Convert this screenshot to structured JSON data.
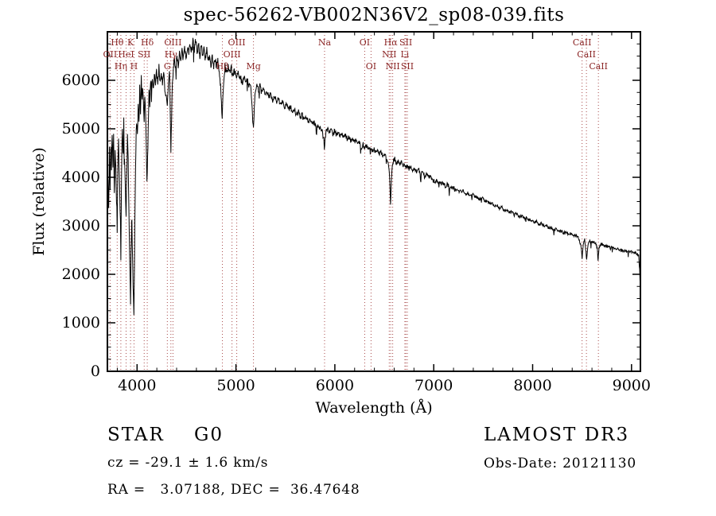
{
  "title": "spec-56262-VB002N36V2_sp08-039.fits",
  "footer": {
    "class_line": "STAR    G0",
    "cz_line": "cz = -29.1 ± 1.6 km/s",
    "radec_line": "RA =   3.07188, DEC =  36.47648",
    "survey": "LAMOST DR3",
    "obs_date": "Obs-Date: 20121130"
  },
  "chart_data": {
    "type": "line",
    "title": "spec-56262-VB002N36V2_sp08-039.fits",
    "xlabel": "Wavelength (Å)",
    "ylabel": "Flux (relative)",
    "xlim": [
      3700,
      9090
    ],
    "ylim": [
      0,
      7000
    ],
    "x_ticks": [
      4000,
      5000,
      6000,
      7000,
      8000,
      9000
    ],
    "y_ticks": [
      0,
      1000,
      2000,
      3000,
      4000,
      5000,
      6000
    ],
    "x_minor_step": 200,
    "y_minor_step": 250,
    "grid": false,
    "line_color": "#000000",
    "marker_color": "#a84a4a",
    "marker_label_color": "#8b2525",
    "spectral_lines": [
      {
        "label": "Hθ",
        "wavelength": 3799,
        "row": 1
      },
      {
        "label": "K",
        "wavelength": 3934,
        "row": 1
      },
      {
        "label": "Hδ",
        "wavelength": 4103,
        "row": 1
      },
      {
        "label": "OIII",
        "wavelength": 4363,
        "row": 1
      },
      {
        "label": "OIII",
        "wavelength": 5008,
        "row": 1
      },
      {
        "label": "Na",
        "wavelength": 5896,
        "row": 1
      },
      {
        "label": "OI",
        "wavelength": 6302,
        "row": 1
      },
      {
        "label": "Hα",
        "wavelength": 6565,
        "row": 1
      },
      {
        "label": "SII",
        "wavelength": 6718,
        "row": 1
      },
      {
        "label": "CaII",
        "wavelength": 8500,
        "row": 1
      },
      {
        "label": "OII",
        "wavelength": 3727,
        "row": 2
      },
      {
        "label": "HeI",
        "wavelength": 3889,
        "row": 2
      },
      {
        "label": "SII",
        "wavelength": 4072,
        "row": 2
      },
      {
        "label": "Hγ",
        "wavelength": 4342,
        "row": 2
      },
      {
        "label": "OIII",
        "wavelength": 4960,
        "row": 2
      },
      {
        "label": "NII",
        "wavelength": 6550,
        "row": 2
      },
      {
        "label": "Li",
        "wavelength": 6708,
        "row": 2
      },
      {
        "label": "CaII",
        "wavelength": 8544,
        "row": 2
      },
      {
        "label": "Hη",
        "wavelength": 3836,
        "row": 3
      },
      {
        "label": "H",
        "wavelength": 3969,
        "row": 3
      },
      {
        "label": "G",
        "wavelength": 4306,
        "row": 3
      },
      {
        "label": "Hβ",
        "wavelength": 4863,
        "row": 3
      },
      {
        "label": "Mg",
        "wavelength": 5177,
        "row": 3
      },
      {
        "label": "OI",
        "wavelength": 6366,
        "row": 3
      },
      {
        "label": "NII",
        "wavelength": 6585,
        "row": 3
      },
      {
        "label": "SII",
        "wavelength": 6733,
        "row": 3
      },
      {
        "label": "CaII",
        "wavelength": 8665,
        "row": 3
      }
    ],
    "spectrum_anchors": [
      [
        3700,
        2600
      ],
      [
        3706,
        3950
      ],
      [
        3713,
        3350
      ],
      [
        3720,
        4550
      ],
      [
        3727,
        3800
      ],
      [
        3734,
        4700
      ],
      [
        3741,
        4250
      ],
      [
        3748,
        5000
      ],
      [
        3756,
        4150
      ],
      [
        3763,
        4800
      ],
      [
        3770,
        3700
      ],
      [
        3778,
        4600
      ],
      [
        3785,
        4150
      ],
      [
        3792,
        3600
      ],
      [
        3799,
        2950
      ],
      [
        3806,
        4300
      ],
      [
        3813,
        4750
      ],
      [
        3820,
        4050
      ],
      [
        3828,
        3300
      ],
      [
        3836,
        2650
      ],
      [
        3844,
        4200
      ],
      [
        3851,
        4900
      ],
      [
        3858,
        4500
      ],
      [
        3866,
        5100
      ],
      [
        3873,
        4350
      ],
      [
        3880,
        3750
      ],
      [
        3889,
        3100
      ],
      [
        3896,
        4050
      ],
      [
        3903,
        4800
      ],
      [
        3910,
        4250
      ],
      [
        3917,
        3350
      ],
      [
        3924,
        2450
      ],
      [
        3930,
        1850
      ],
      [
        3934,
        1450
      ],
      [
        3939,
        2400
      ],
      [
        3945,
        3250
      ],
      [
        3951,
        2750
      ],
      [
        3957,
        2050
      ],
      [
        3963,
        1500
      ],
      [
        3968,
        1150
      ],
      [
        3974,
        2350
      ],
      [
        3981,
        3650
      ],
      [
        3988,
        4550
      ],
      [
        3995,
        5150
      ],
      [
        4003,
        4750
      ],
      [
        4011,
        5500
      ],
      [
        4019,
        5000
      ],
      [
        4027,
        5850
      ],
      [
        4035,
        5400
      ],
      [
        4043,
        6000
      ],
      [
        4051,
        5550
      ],
      [
        4059,
        5850
      ],
      [
        4067,
        5300
      ],
      [
        4072,
        5000
      ],
      [
        4078,
        5650
      ],
      [
        4086,
        5250
      ],
      [
        4094,
        4600
      ],
      [
        4100,
        3850
      ],
      [
        4106,
        4300
      ],
      [
        4113,
        5100
      ],
      [
        4121,
        5700
      ],
      [
        4129,
        5450
      ],
      [
        4137,
        6000
      ],
      [
        4146,
        5700
      ],
      [
        4155,
        6100
      ],
      [
        4165,
        5800
      ],
      [
        4175,
        6150
      ],
      [
        4186,
        5900
      ],
      [
        4197,
        6200
      ],
      [
        4209,
        5950
      ],
      [
        4221,
        6250
      ],
      [
        4233,
        6000
      ],
      [
        4245,
        6200
      ],
      [
        4257,
        5900
      ],
      [
        4269,
        6150
      ],
      [
        4281,
        5850
      ],
      [
        4293,
        5650
      ],
      [
        4306,
        5450
      ],
      [
        4317,
        5950
      ],
      [
        4328,
        6150
      ],
      [
        4336,
        5250
      ],
      [
        4342,
        4500
      ],
      [
        4349,
        5250
      ],
      [
        4357,
        5950
      ],
      [
        4367,
        6250
      ],
      [
        4378,
        6450
      ],
      [
        4390,
        6250
      ],
      [
        4403,
        6500
      ],
      [
        4416,
        6320
      ],
      [
        4429,
        6550
      ],
      [
        4442,
        6380
      ],
      [
        4455,
        6600
      ],
      [
        4468,
        6420
      ],
      [
        4481,
        6650
      ],
      [
        4495,
        6480
      ],
      [
        4509,
        6720
      ],
      [
        4523,
        6550
      ],
      [
        4537,
        6780
      ],
      [
        4551,
        6600
      ],
      [
        4565,
        6880
      ],
      [
        4579,
        6650
      ],
      [
        4593,
        6800
      ],
      [
        4607,
        6580
      ],
      [
        4621,
        6750
      ],
      [
        4635,
        6520
      ],
      [
        4649,
        6700
      ],
      [
        4663,
        6480
      ],
      [
        4677,
        6650
      ],
      [
        4691,
        6430
      ],
      [
        4705,
        6600
      ],
      [
        4719,
        6380
      ],
      [
        4733,
        6550
      ],
      [
        4747,
        6330
      ],
      [
        4761,
        6500
      ],
      [
        4775,
        6300
      ],
      [
        4789,
        6450
      ],
      [
        4803,
        6260
      ],
      [
        4817,
        6400
      ],
      [
        4831,
        6150
      ],
      [
        4845,
        5850
      ],
      [
        4861,
        5250
      ],
      [
        4875,
        6000
      ],
      [
        4890,
        6280
      ],
      [
        4906,
        6130
      ],
      [
        4922,
        6300
      ],
      [
        4938,
        6150
      ],
      [
        4954,
        6280
      ],
      [
        4970,
        6100
      ],
      [
        4986,
        6230
      ],
      [
        5002,
        6060
      ],
      [
        5018,
        6180
      ],
      [
        5034,
        6010
      ],
      [
        5050,
        6130
      ],
      [
        5066,
        5960
      ],
      [
        5082,
        6080
      ],
      [
        5098,
        5920
      ],
      [
        5114,
        6030
      ],
      [
        5130,
        5870
      ],
      [
        5146,
        5950
      ],
      [
        5160,
        5600
      ],
      [
        5170,
        5150
      ],
      [
        5177,
        5050
      ],
      [
        5186,
        5450
      ],
      [
        5196,
        5800
      ],
      [
        5212,
        5930
      ],
      [
        5228,
        5790
      ],
      [
        5244,
        5880
      ],
      [
        5260,
        5740
      ],
      [
        5276,
        5830
      ],
      [
        5292,
        5690
      ],
      [
        5312,
        5780
      ],
      [
        5332,
        5640
      ],
      [
        5352,
        5730
      ],
      [
        5372,
        5590
      ],
      [
        5392,
        5680
      ],
      [
        5412,
        5540
      ],
      [
        5432,
        5620
      ],
      [
        5452,
        5490
      ],
      [
        5472,
        5570
      ],
      [
        5492,
        5440
      ],
      [
        5512,
        5520
      ],
      [
        5532,
        5390
      ],
      [
        5552,
        5460
      ],
      [
        5572,
        5330
      ],
      [
        5592,
        5400
      ],
      [
        5612,
        5280
      ],
      [
        5632,
        5350
      ],
      [
        5652,
        5230
      ],
      [
        5672,
        5300
      ],
      [
        5692,
        5180
      ],
      [
        5712,
        5240
      ],
      [
        5732,
        5130
      ],
      [
        5752,
        5190
      ],
      [
        5772,
        5080
      ],
      [
        5792,
        5140
      ],
      [
        5812,
        5030
      ],
      [
        5832,
        5090
      ],
      [
        5852,
        5010
      ],
      [
        5872,
        4960
      ],
      [
        5888,
        4780
      ],
      [
        5894,
        4620
      ],
      [
        5901,
        4780
      ],
      [
        5910,
        4950
      ],
      [
        5926,
        5010
      ],
      [
        5944,
        4930
      ],
      [
        5962,
        4990
      ],
      [
        5980,
        4900
      ],
      [
        5998,
        4960
      ],
      [
        6016,
        4880
      ],
      [
        6034,
        4930
      ],
      [
        6052,
        4850
      ],
      [
        6070,
        4900
      ],
      [
        6088,
        4820
      ],
      [
        6106,
        4870
      ],
      [
        6124,
        4790
      ],
      [
        6142,
        4840
      ],
      [
        6160,
        4760
      ],
      [
        6178,
        4800
      ],
      [
        6196,
        4730
      ],
      [
        6214,
        4770
      ],
      [
        6232,
        4700
      ],
      [
        6250,
        4740
      ],
      [
        6268,
        4610
      ],
      [
        6286,
        4680
      ],
      [
        6304,
        4600
      ],
      [
        6322,
        4660
      ],
      [
        6340,
        4570
      ],
      [
        6358,
        4620
      ],
      [
        6376,
        4540
      ],
      [
        6394,
        4590
      ],
      [
        6412,
        4510
      ],
      [
        6430,
        4560
      ],
      [
        6448,
        4480
      ],
      [
        6466,
        4520
      ],
      [
        6484,
        4450
      ],
      [
        6502,
        4480
      ],
      [
        6520,
        4420
      ],
      [
        6538,
        4300
      ],
      [
        6550,
        4100
      ],
      [
        6558,
        3750
      ],
      [
        6563,
        3450
      ],
      [
        6569,
        3800
      ],
      [
        6577,
        4150
      ],
      [
        6590,
        4320
      ],
      [
        6606,
        4380
      ],
      [
        6622,
        4300
      ],
      [
        6638,
        4350
      ],
      [
        6654,
        4270
      ],
      [
        6670,
        4320
      ],
      [
        6686,
        4240
      ],
      [
        6702,
        4290
      ],
      [
        6718,
        4210
      ],
      [
        6734,
        4250
      ],
      [
        6750,
        4180
      ],
      [
        6770,
        4220
      ],
      [
        6790,
        4150
      ],
      [
        6810,
        4180
      ],
      [
        6830,
        4110
      ],
      [
        6850,
        4140
      ],
      [
        6870,
        4070
      ],
      [
        6890,
        4100
      ],
      [
        6910,
        4030
      ],
      [
        6930,
        4060
      ],
      [
        6950,
        3990
      ],
      [
        6970,
        4020
      ],
      [
        6990,
        3950
      ],
      [
        7015,
        3900
      ],
      [
        7040,
        3930
      ],
      [
        7065,
        3860
      ],
      [
        7090,
        3890
      ],
      [
        7115,
        3820
      ],
      [
        7140,
        3850
      ],
      [
        7165,
        3780
      ],
      [
        7190,
        3810
      ],
      [
        7215,
        3740
      ],
      [
        7240,
        3770
      ],
      [
        7265,
        3700
      ],
      [
        7290,
        3730
      ],
      [
        7315,
        3660
      ],
      [
        7340,
        3690
      ],
      [
        7365,
        3620
      ],
      [
        7390,
        3650
      ],
      [
        7415,
        3580
      ],
      [
        7440,
        3610
      ],
      [
        7465,
        3540
      ],
      [
        7490,
        3570
      ],
      [
        7515,
        3500
      ],
      [
        7540,
        3520
      ],
      [
        7565,
        3450
      ],
      [
        7590,
        3470
      ],
      [
        7615,
        3410
      ],
      [
        7640,
        3430
      ],
      [
        7665,
        3360
      ],
      [
        7690,
        3380
      ],
      [
        7715,
        3310
      ],
      [
        7740,
        3330
      ],
      [
        7765,
        3270
      ],
      [
        7790,
        3290
      ],
      [
        7815,
        3230
      ],
      [
        7840,
        3250
      ],
      [
        7865,
        3190
      ],
      [
        7890,
        3210
      ],
      [
        7915,
        3150
      ],
      [
        7940,
        3170
      ],
      [
        7965,
        3110
      ],
      [
        7990,
        3130
      ],
      [
        8015,
        3070
      ],
      [
        8040,
        3090
      ],
      [
        8065,
        3030
      ],
      [
        8090,
        3050
      ],
      [
        8115,
        2990
      ],
      [
        8140,
        3010
      ],
      [
        8165,
        2950
      ],
      [
        8190,
        2970
      ],
      [
        8215,
        2920
      ],
      [
        8240,
        2930
      ],
      [
        8265,
        2880
      ],
      [
        8290,
        2900
      ],
      [
        8315,
        2850
      ],
      [
        8340,
        2870
      ],
      [
        8365,
        2820
      ],
      [
        8390,
        2840
      ],
      [
        8415,
        2790
      ],
      [
        8440,
        2800
      ],
      [
        8465,
        2760
      ],
      [
        8488,
        2600
      ],
      [
        8500,
        2320
      ],
      [
        8512,
        2620
      ],
      [
        8526,
        2730
      ],
      [
        8540,
        2450
      ],
      [
        8546,
        2280
      ],
      [
        8554,
        2500
      ],
      [
        8568,
        2700
      ],
      [
        8590,
        2680
      ],
      [
        8612,
        2660
      ],
      [
        8634,
        2640
      ],
      [
        8652,
        2560
      ],
      [
        8662,
        2300
      ],
      [
        8672,
        2540
      ],
      [
        8688,
        2620
      ],
      [
        8710,
        2610
      ],
      [
        8732,
        2590
      ],
      [
        8754,
        2580
      ],
      [
        8776,
        2560
      ],
      [
        8798,
        2550
      ],
      [
        8820,
        2530
      ],
      [
        8842,
        2520
      ],
      [
        8864,
        2510
      ],
      [
        8886,
        2500
      ],
      [
        8908,
        2490
      ],
      [
        8930,
        2480
      ],
      [
        8952,
        2475
      ],
      [
        8974,
        2470
      ],
      [
        8996,
        2460
      ],
      [
        9018,
        2450
      ],
      [
        9040,
        2440
      ],
      [
        9058,
        2420
      ],
      [
        9072,
        2380
      ],
      [
        9082,
        2100
      ],
      [
        9088,
        1700
      ],
      [
        9090,
        1500
      ]
    ],
    "noise": {
      "seed": 7,
      "step": 4,
      "spike_prob": 0.02,
      "amplitude_profile": [
        [
          4150,
          150
        ],
        [
          4900,
          90
        ],
        [
          6000,
          60
        ],
        [
          7500,
          45
        ],
        [
          9200,
          32
        ]
      ]
    }
  }
}
